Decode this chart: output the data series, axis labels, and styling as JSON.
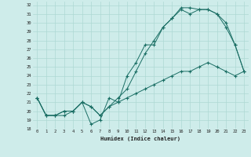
{
  "xlabel": "Humidex (Indice chaleur)",
  "ylabel": "",
  "bg_color": "#ceecea",
  "grid_color": "#aed8d4",
  "line_color": "#1a6e64",
  "xlim": [
    -0.5,
    23.5
  ],
  "ylim": [
    18,
    32.4
  ],
  "yticks": [
    18,
    19,
    20,
    21,
    22,
    23,
    24,
    25,
    26,
    27,
    28,
    29,
    30,
    31,
    32
  ],
  "xticks": [
    0,
    1,
    2,
    3,
    4,
    5,
    6,
    7,
    8,
    9,
    10,
    11,
    12,
    13,
    14,
    15,
    16,
    17,
    18,
    19,
    20,
    21,
    22,
    23
  ],
  "line1_x": [
    0,
    1,
    2,
    3,
    4,
    5,
    6,
    7,
    8,
    9,
    10,
    11,
    12,
    13,
    14,
    15,
    16,
    17,
    18,
    19,
    20,
    21,
    22,
    23
  ],
  "line1_y": [
    21.5,
    19.5,
    19.5,
    19.5,
    20.0,
    21.0,
    18.5,
    19.0,
    21.5,
    21.0,
    24.0,
    25.5,
    27.5,
    27.5,
    29.5,
    30.5,
    31.7,
    31.7,
    31.5,
    31.5,
    31.0,
    30.0,
    27.5,
    24.5
  ],
  "line2_x": [
    0,
    1,
    2,
    3,
    4,
    5,
    6,
    7,
    8,
    9,
    10,
    11,
    12,
    13,
    14,
    15,
    16,
    17,
    18,
    19,
    20,
    21,
    22,
    23
  ],
  "line2_y": [
    21.5,
    19.5,
    19.5,
    20.0,
    20.0,
    21.0,
    20.5,
    19.5,
    20.5,
    21.0,
    21.5,
    22.0,
    22.5,
    23.0,
    23.5,
    24.0,
    24.5,
    24.5,
    25.0,
    25.5,
    25.0,
    24.5,
    24.0,
    24.5
  ],
  "line3_x": [
    0,
    1,
    2,
    3,
    4,
    5,
    6,
    7,
    8,
    9,
    10,
    11,
    12,
    13,
    14,
    15,
    16,
    17,
    18,
    19,
    20,
    21,
    22,
    23
  ],
  "line3_y": [
    21.5,
    19.5,
    19.5,
    20.0,
    20.0,
    21.0,
    20.5,
    19.5,
    20.5,
    21.5,
    22.5,
    24.5,
    26.5,
    28.0,
    29.5,
    30.5,
    31.5,
    31.0,
    31.5,
    31.5,
    31.0,
    29.5,
    27.5,
    24.5
  ]
}
